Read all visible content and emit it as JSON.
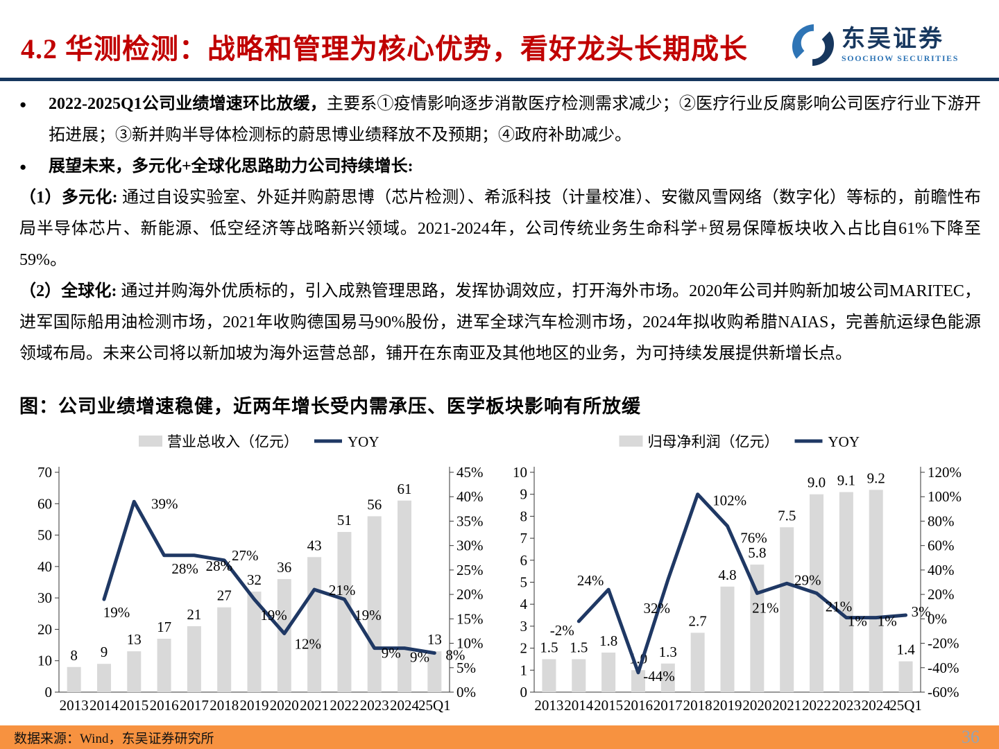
{
  "header": {
    "title": "4.2 华测检测：战略和管理为核心优势，看好龙头长期成长",
    "logo_name": "东吴证券",
    "logo_subtitle": "SOOCHOW SECURITIES"
  },
  "content": {
    "bullet1_bold": "2022-2025Q1公司业绩增速环比放缓，",
    "bullet1_rest": "主要系①疫情影响逐步消散医疗检测需求减少；②医疗行业反腐影响公司医疗行业下游开拓进展；③新并购半导体检测标的蔚思博业绩释放不及预期；④政府补助减少。",
    "bullet2_bold": "展望未来，多元化+全球化思路助力公司持续增长:",
    "para1_bold": "（1）多元化: ",
    "para1_rest": "通过自设实验室、外延并购蔚思博（芯片检测）、希派科技（计量校准）、安徽风雪网络（数字化）等标的，前瞻性布局半导体芯片、新能源、低空经济等战略新兴领域。2021-2024年，公司传统业务生命科学+贸易保障板块收入占比自61%下降至59%。",
    "para2_bold": "（2）全球化: ",
    "para2_rest": "通过并购海外优质标的，引入成熟管理思路，发挥协调效应，打开海外市场。2020年公司并购新加坡公司MARITEC，进军国际船用油检测市场，2021年收购德国易马90%股份，进军全球汽车检测市场，2024年拟收购希腊NAIAS，完善航运绿色能源领域布局。未来公司将以新加坡为海外运营总部，铺开在东南亚及其他地区的业务，为可持续发展提供新增长点。",
    "figure_title": "图：公司业绩增速稳健，近两年增长受内需承压、医学板块影响有所放缓"
  },
  "chart_data": [
    {
      "type": "bar+line",
      "legend": [
        "营业总收入（亿元）",
        "YOY"
      ],
      "categories": [
        "2013",
        "2014",
        "2015",
        "2016",
        "2017",
        "2018",
        "2019",
        "2020",
        "2021",
        "2022",
        "2023",
        "2024",
        "25Q1"
      ],
      "series": [
        {
          "name": "营业总收入（亿元）",
          "type": "bar",
          "axis": "left",
          "values": [
            8,
            9,
            13,
            17,
            21,
            27,
            32,
            36,
            43,
            51,
            56,
            61,
            13
          ],
          "labels": [
            "8",
            "9",
            "13",
            "17",
            "21",
            "27",
            "32",
            "36",
            "43",
            "51",
            "56",
            "61",
            "13"
          ]
        },
        {
          "name": "YOY",
          "type": "line",
          "axis": "right",
          "values": [
            null,
            19,
            39,
            28,
            28,
            27,
            19,
            12,
            21,
            19,
            9,
            9,
            8
          ],
          "labels": [
            null,
            "19%",
            "39%",
            "28%",
            "28%",
            "27%",
            "19%",
            "12%",
            "21%",
            "19%",
            "9%",
            "9%",
            "8%"
          ]
        }
      ],
      "left_axis": {
        "min": 0,
        "max": 70,
        "step": 10,
        "suffix": ""
      },
      "right_axis": {
        "min": 0,
        "max": 45,
        "step": 5,
        "suffix": "%"
      },
      "grid": false,
      "legend_position": "top"
    },
    {
      "type": "bar+line",
      "legend": [
        "归母净利润（亿元）",
        "YOY"
      ],
      "categories": [
        "2013",
        "2014",
        "2015",
        "2016",
        "2017",
        "2018",
        "2019",
        "2020",
        "2021",
        "2022",
        "2023",
        "2024",
        "25Q1"
      ],
      "series": [
        {
          "name": "归母净利润（亿元）",
          "type": "bar",
          "axis": "left",
          "values": [
            1.5,
            1.5,
            1.8,
            1.0,
            1.3,
            2.7,
            4.8,
            5.8,
            7.5,
            9.0,
            9.1,
            9.2,
            1.4
          ],
          "labels": [
            "1.5",
            "1.5",
            "1.8",
            "1.0",
            "1.3",
            "2.7",
            "4.8",
            "5.8",
            "7.5",
            "9.0",
            "9.1",
            "9.2",
            "1.4"
          ]
        },
        {
          "name": "YOY",
          "type": "line",
          "axis": "right",
          "values": [
            null,
            -2,
            24,
            -44,
            32,
            102,
            76,
            21,
            29,
            21,
            1,
            1,
            3
          ],
          "labels": [
            null,
            "-2%",
            "24%",
            "-44%",
            "32%",
            "102%",
            "76%",
            "21%",
            "29%",
            "21%",
            "1%",
            "1%",
            "3%"
          ]
        }
      ],
      "left_axis": {
        "min": 0,
        "max": 10,
        "step": 1,
        "suffix": ""
      },
      "right_axis": {
        "min": -60,
        "max": 120,
        "step": 20,
        "suffix": "%"
      },
      "grid": false,
      "legend_position": "top"
    }
  ],
  "footer": {
    "source": "数据来源：Wind，东吴证券研究所",
    "page": "36"
  },
  "colors": {
    "title_red": "#C00000",
    "line_navy": "#1F3864",
    "bar_gray": "#D9D9D9",
    "logo_blue": "#2E74B5",
    "logo_navy": "#17375E",
    "footer_orange": "#F79240",
    "page_number": "#93A4B4"
  }
}
